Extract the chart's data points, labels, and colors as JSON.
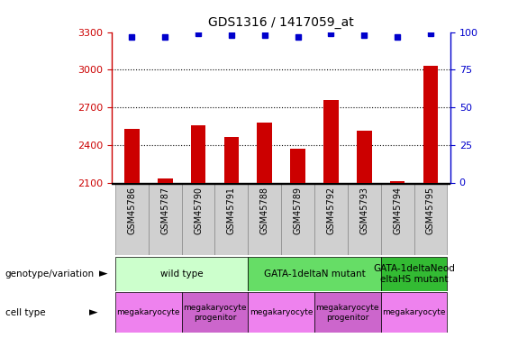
{
  "title": "GDS1316 / 1417059_at",
  "samples": [
    "GSM45786",
    "GSM45787",
    "GSM45790",
    "GSM45791",
    "GSM45788",
    "GSM45789",
    "GSM45792",
    "GSM45793",
    "GSM45794",
    "GSM45795"
  ],
  "bar_values": [
    2530,
    2130,
    2560,
    2460,
    2580,
    2370,
    2760,
    2510,
    2110,
    3030
  ],
  "percentile_values": [
    97,
    97,
    99,
    98,
    98,
    97,
    99,
    98,
    97,
    99
  ],
  "ylim_left": [
    2100,
    3300
  ],
  "ylim_right": [
    0,
    100
  ],
  "yticks_left": [
    2100,
    2400,
    2700,
    3000,
    3300
  ],
  "yticks_right": [
    0,
    25,
    50,
    75,
    100
  ],
  "bar_color": "#cc0000",
  "dot_color": "#0000cc",
  "bg_color": "#ffffff",
  "plot_bg": "#ffffff",
  "genotype_groups": [
    {
      "label": "wild type",
      "start": 0,
      "end": 4,
      "color": "#ccffcc"
    },
    {
      "label": "GATA-1deltaN mutant",
      "start": 4,
      "end": 8,
      "color": "#66dd66"
    },
    {
      "label": "GATA-1deltaNeod\neltaHS mutant",
      "start": 8,
      "end": 10,
      "color": "#33bb33"
    }
  ],
  "cell_type_groups": [
    {
      "label": "megakaryocyte",
      "start": 0,
      "end": 2,
      "color": "#ee82ee"
    },
    {
      "label": "megakaryocyte\nprogenitor",
      "start": 2,
      "end": 4,
      "color": "#cc66cc"
    },
    {
      "label": "megakaryocyte",
      "start": 4,
      "end": 6,
      "color": "#ee82ee"
    },
    {
      "label": "megakaryocyte\nprogenitor",
      "start": 6,
      "end": 8,
      "color": "#cc66cc"
    },
    {
      "label": "megakaryocyte",
      "start": 8,
      "end": 10,
      "color": "#ee82ee"
    }
  ],
  "tick_label_color_left": "#cc0000",
  "tick_label_color_right": "#0000cc",
  "xtick_bg": "#d0d0d0",
  "xtick_border": "#888888"
}
